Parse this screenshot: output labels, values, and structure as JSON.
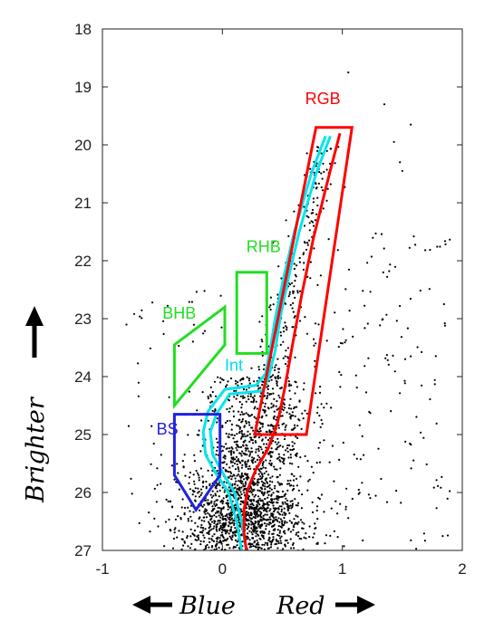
{
  "chart_data": {
    "type": "scatter",
    "title": "",
    "xlabel_left": "Blue",
    "xlabel_right": "Red",
    "ylabel": "Brighter",
    "xlim": [
      -1,
      2
    ],
    "ylim": [
      27,
      18
    ],
    "y_inverted": true,
    "grid": false,
    "x_ticks": [
      -1,
      0,
      1,
      2
    ],
    "x_tick_labels": [
      "-1",
      "0",
      "1",
      "2"
    ],
    "y_ticks": [
      18,
      19,
      20,
      21,
      22,
      23,
      24,
      25,
      26,
      27
    ],
    "y_tick_labels": [
      "18",
      "19",
      "20",
      "21",
      "22",
      "23",
      "24",
      "25",
      "26",
      "27"
    ],
    "point_color": "#000000",
    "regions": [
      {
        "label": "RGB",
        "color": "#ff0000",
        "polygon": [
          [
            0.78,
            19.7
          ],
          [
            1.08,
            19.7
          ],
          [
            0.7,
            25.0
          ],
          [
            0.27,
            25.0
          ]
        ],
        "label_at": [
          0.69,
          19.3
        ]
      },
      {
        "label": "RHB",
        "color": "#22dd22",
        "polygon": [
          [
            0.12,
            22.2
          ],
          [
            0.37,
            22.2
          ],
          [
            0.37,
            23.6
          ],
          [
            0.12,
            23.6
          ]
        ],
        "label_at": [
          0.2,
          21.85
        ]
      },
      {
        "label": "BHB",
        "color": "#22dd22",
        "polygon": [
          [
            -0.4,
            23.45
          ],
          [
            0.02,
            22.8
          ],
          [
            0.02,
            23.45
          ],
          [
            -0.4,
            24.5
          ]
        ],
        "label_at": [
          -0.5,
          23.0
        ]
      },
      {
        "label": "Int",
        "color": "#00ddee",
        "polygon": [],
        "label_at": [
          0.02,
          23.9
        ]
      },
      {
        "label": "BS",
        "color": "#2222dd",
        "polygon": [
          [
            -0.4,
            24.65
          ],
          [
            -0.02,
            24.65
          ],
          [
            -0.02,
            25.7
          ],
          [
            -0.22,
            26.3
          ],
          [
            -0.4,
            25.7
          ]
        ],
        "label_at": [
          -0.55,
          25.0
        ]
      }
    ],
    "isochrones": [
      {
        "color": "#00e5ee",
        "points": [
          [
            0.9,
            19.85
          ],
          [
            0.78,
            20.5
          ],
          [
            0.64,
            21.5
          ],
          [
            0.55,
            22.3
          ],
          [
            0.48,
            23.0
          ],
          [
            0.44,
            23.55
          ],
          [
            0.38,
            24.05
          ],
          [
            0.33,
            24.25
          ],
          [
            0.06,
            24.3
          ],
          [
            -0.05,
            24.65
          ],
          [
            -0.1,
            24.95
          ],
          [
            -0.08,
            25.35
          ],
          [
            0.0,
            25.65
          ],
          [
            0.1,
            26.0
          ],
          [
            0.16,
            26.5
          ],
          [
            0.2,
            27.0
          ]
        ]
      },
      {
        "color": "#00e5ee",
        "points": [
          [
            0.86,
            19.85
          ],
          [
            0.74,
            20.5
          ],
          [
            0.6,
            21.5
          ],
          [
            0.51,
            22.3
          ],
          [
            0.44,
            23.0
          ],
          [
            0.4,
            23.5
          ],
          [
            0.36,
            23.95
          ],
          [
            0.28,
            24.15
          ],
          [
            0.02,
            24.22
          ],
          [
            -0.12,
            24.6
          ],
          [
            -0.16,
            24.95
          ],
          [
            -0.14,
            25.35
          ],
          [
            -0.06,
            25.65
          ],
          [
            0.05,
            26.0
          ],
          [
            0.12,
            26.5
          ],
          [
            0.16,
            27.0
          ]
        ]
      },
      {
        "color": "#ff0000",
        "points": [
          [
            0.98,
            19.8
          ],
          [
            0.88,
            20.6
          ],
          [
            0.76,
            21.6
          ],
          [
            0.66,
            22.6
          ],
          [
            0.58,
            23.5
          ],
          [
            0.52,
            24.2
          ],
          [
            0.46,
            24.8
          ],
          [
            0.38,
            25.25
          ],
          [
            0.28,
            25.6
          ],
          [
            0.21,
            25.95
          ],
          [
            0.18,
            26.3
          ],
          [
            0.18,
            26.7
          ],
          [
            0.2,
            27.0
          ]
        ]
      }
    ],
    "scatter_points": {
      "description": "",
      "count": 2600
    }
  }
}
